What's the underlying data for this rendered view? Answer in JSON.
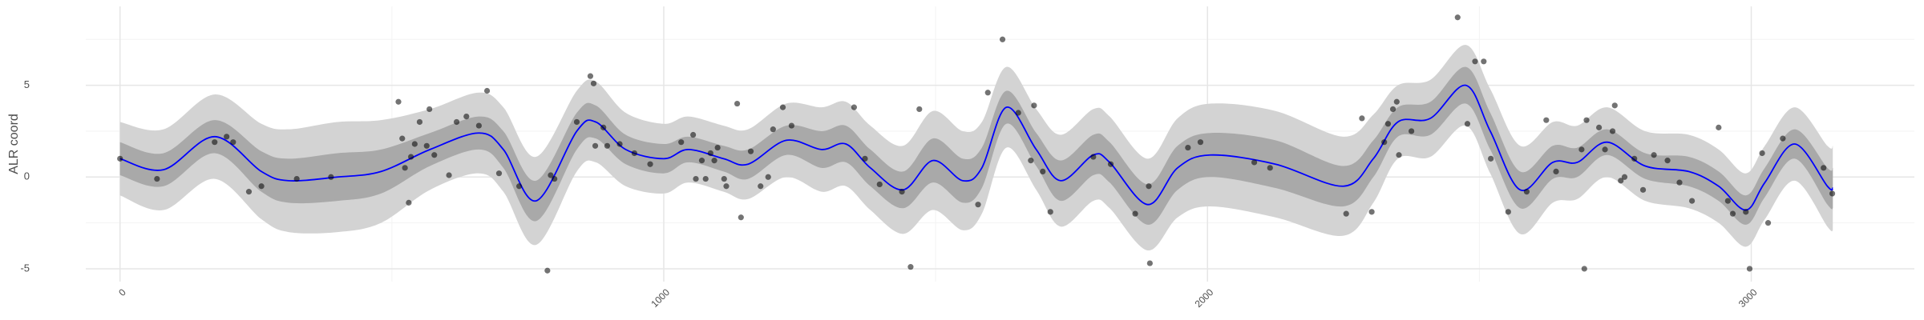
{
  "chart_data": {
    "type": "line",
    "y_label": "ALR coord",
    "xlim": [
      -63,
      3300
    ],
    "ylim": [
      -5.7,
      9.3
    ],
    "xticks": [
      0,
      1000,
      2000,
      3000
    ],
    "yticks": [
      -5,
      0,
      5
    ],
    "xminor": [
      500,
      1500,
      2500
    ],
    "yminor": [
      -2.5,
      2.5,
      7.5
    ],
    "grid": true,
    "x": [
      0,
      80,
      174,
      260,
      310,
      400,
      480,
      570,
      660,
      705,
      765,
      840,
      875,
      930,
      1000,
      1045,
      1110,
      1155,
      1225,
      1290,
      1335,
      1380,
      1440,
      1495,
      1550,
      1585,
      1630,
      1685,
      1730,
      1790,
      1820,
      1890,
      1945,
      2005,
      2125,
      2250,
      2305,
      2350,
      2410,
      2475,
      2520,
      2575,
      2635,
      2680,
      2735,
      2805,
      2885,
      2940,
      2990,
      3025,
      3080,
      3140,
      3150
    ],
    "line": {
      "color": "#0000ff",
      "values": [
        1.0,
        0.4,
        2.2,
        0.3,
        -0.2,
        0.0,
        0.3,
        1.5,
        2.4,
        1.5,
        -1.3,
        2.5,
        3.0,
        1.5,
        1.0,
        1.5,
        1.0,
        0.7,
        2.0,
        1.5,
        1.8,
        0.5,
        -0.7,
        0.9,
        -0.2,
        0.5,
        3.8,
        1.5,
        -0.2,
        1.2,
        0.8,
        -1.5,
        0.5,
        1.2,
        0.7,
        -0.5,
        1.0,
        3.0,
        3.2,
        5.0,
        2.5,
        -0.7,
        0.8,
        0.8,
        1.9,
        0.6,
        0.3,
        -0.5,
        -1.8,
        -0.3,
        1.8,
        -0.5,
        -0.6
      ]
    },
    "ribbons": [
      {
        "color": "#d3d3d3",
        "lower": [
          -1.0,
          -1.8,
          -0.1,
          -2.3,
          -3.0,
          -3.0,
          -2.5,
          -0.7,
          0.2,
          -0.8,
          -3.7,
          0.3,
          0.8,
          -0.5,
          -0.9,
          -0.3,
          -0.8,
          -1.2,
          0.0,
          -0.8,
          -0.5,
          -1.8,
          -3.1,
          -1.8,
          -2.9,
          -2.0,
          1.6,
          -0.7,
          -2.7,
          -1.3,
          -1.7,
          -4.0,
          -2.2,
          -1.6,
          -2.2,
          -3.2,
          -1.4,
          1.0,
          1.1,
          2.8,
          0.2,
          -3.1,
          -1.4,
          -1.2,
          0.0,
          -1.3,
          -1.7,
          -2.5,
          -3.8,
          -2.3,
          -0.2,
          -2.7,
          -2.9
        ],
        "upper": [
          3.0,
          2.6,
          4.5,
          2.9,
          2.6,
          3.0,
          3.1,
          3.7,
          4.6,
          3.8,
          1.1,
          4.7,
          5.2,
          3.5,
          2.9,
          3.3,
          2.8,
          2.6,
          4.0,
          3.8,
          4.1,
          2.8,
          1.7,
          3.6,
          2.5,
          3.0,
          6.0,
          3.7,
          2.3,
          3.7,
          3.3,
          1.0,
          3.2,
          4.0,
          3.6,
          2.2,
          3.4,
          5.0,
          5.3,
          7.2,
          4.8,
          1.7,
          3.0,
          2.8,
          3.8,
          2.5,
          2.3,
          1.5,
          0.2,
          1.7,
          3.8,
          1.7,
          1.7
        ]
      },
      {
        "color": "#a9a9a9",
        "lower": [
          0.1,
          -0.5,
          1.3,
          -0.8,
          -1.4,
          -1.3,
          -0.9,
          0.6,
          1.5,
          0.5,
          -2.4,
          1.5,
          2.1,
          0.7,
          0.2,
          0.8,
          0.3,
          -0.1,
          1.2,
          0.5,
          0.8,
          -0.5,
          -1.7,
          -0.3,
          -1.4,
          -0.6,
          2.9,
          0.6,
          -1.3,
          0.1,
          -0.3,
          -2.6,
          -0.7,
          0.0,
          -0.6,
          -1.6,
          0.0,
          2.2,
          2.3,
          4.0,
          1.5,
          -1.7,
          -0.1,
          0.0,
          1.2,
          -0.1,
          -0.5,
          -1.3,
          -2.6,
          -1.1,
          1.0,
          -1.5,
          -1.7
        ],
        "upper": [
          1.9,
          1.3,
          3.1,
          1.4,
          1.0,
          1.3,
          1.5,
          2.4,
          3.3,
          2.5,
          -0.2,
          3.5,
          3.9,
          2.3,
          1.8,
          2.2,
          1.7,
          1.5,
          2.8,
          2.5,
          2.8,
          1.5,
          0.3,
          2.1,
          1.0,
          1.6,
          4.7,
          2.4,
          0.9,
          2.3,
          1.9,
          -0.4,
          1.7,
          2.4,
          2.0,
          0.6,
          2.0,
          3.8,
          4.1,
          6.0,
          3.5,
          0.3,
          1.7,
          1.6,
          2.6,
          1.3,
          1.1,
          0.3,
          -1.0,
          0.5,
          2.6,
          0.5,
          0.5
        ]
      }
    ],
    "points": {
      "color": "#000000",
      "opacity": 0.55,
      "x": [
        0,
        68,
        174,
        196,
        208,
        237,
        260,
        325,
        388,
        512,
        519,
        524,
        531,
        535,
        542,
        551,
        564,
        569,
        578,
        605,
        619,
        637,
        660,
        675,
        697,
        734,
        786,
        792,
        799,
        840,
        865,
        871,
        874,
        889,
        896,
        919,
        946,
        975,
        1032,
        1054,
        1059,
        1070,
        1077,
        1086,
        1093,
        1099,
        1111,
        1115,
        1135,
        1142,
        1160,
        1178,
        1192,
        1201,
        1219,
        1235,
        1350,
        1370,
        1397,
        1438,
        1454,
        1470,
        1578,
        1596,
        1623,
        1652,
        1681,
        1675,
        1697,
        1711,
        1790,
        1822,
        1867,
        1892,
        1894,
        1964,
        1987,
        2086,
        2115,
        2255,
        2284,
        2302,
        2325,
        2332,
        2341,
        2348,
        2352,
        2375,
        2460,
        2478,
        2492,
        2508,
        2521,
        2553,
        2587,
        2623,
        2641,
        2693,
        2688,
        2697,
        2720,
        2731,
        2745,
        2749,
        2760,
        2767,
        2785,
        2801,
        2821,
        2846,
        2868,
        2891,
        2940,
        2957,
        2966,
        2990,
        2997,
        3020,
        3031,
        3058,
        3133,
        3149
      ],
      "y": [
        1.0,
        -0.1,
        1.9,
        2.2,
        1.9,
        -0.8,
        -0.5,
        -0.1,
        0,
        4.1,
        2.1,
        0.5,
        -1.4,
        1.1,
        1.8,
        3.0,
        1.7,
        3.7,
        1.2,
        0.1,
        3.0,
        3.3,
        2.8,
        4.7,
        0.2,
        -0.5,
        -5.1,
        0.1,
        -0.1,
        3.0,
        5.5,
        5.1,
        1.7,
        2.7,
        1.7,
        1.8,
        1.3,
        0.7,
        1.9,
        2.3,
        -0.1,
        0.9,
        -0.1,
        1.3,
        0.9,
        1.6,
        -0.1,
        -0.5,
        4.0,
        -2.2,
        1.4,
        -0.5,
        0,
        2.6,
        3.8,
        2.8,
        3.8,
        1.0,
        -0.4,
        -0.8,
        -4.9,
        3.7,
        -1.5,
        4.6,
        7.5,
        3.5,
        3.9,
        0.9,
        0.3,
        -1.9,
        1.1,
        0.7,
        -2.0,
        -0.5,
        -4.7,
        1.6,
        1.9,
        0.8,
        0.5,
        -2.0,
        3.2,
        -1.9,
        1.9,
        2.9,
        3.7,
        4.1,
        1.2,
        2.5,
        8.7,
        2.9,
        6.3,
        6.3,
        1.0,
        -1.9,
        -0.8,
        3.1,
        0.3,
        -5.0,
        1.5,
        3.1,
        2.7,
        1.5,
        2.5,
        3.9,
        -0.2,
        0.0,
        1.0,
        -0.7,
        1.2,
        0.9,
        -0.3,
        -1.3,
        2.7,
        -1.3,
        -2.0,
        -1.9,
        -5.0,
        1.3,
        -2.5,
        2.1,
        0.5,
        -0.9
      ]
    }
  }
}
